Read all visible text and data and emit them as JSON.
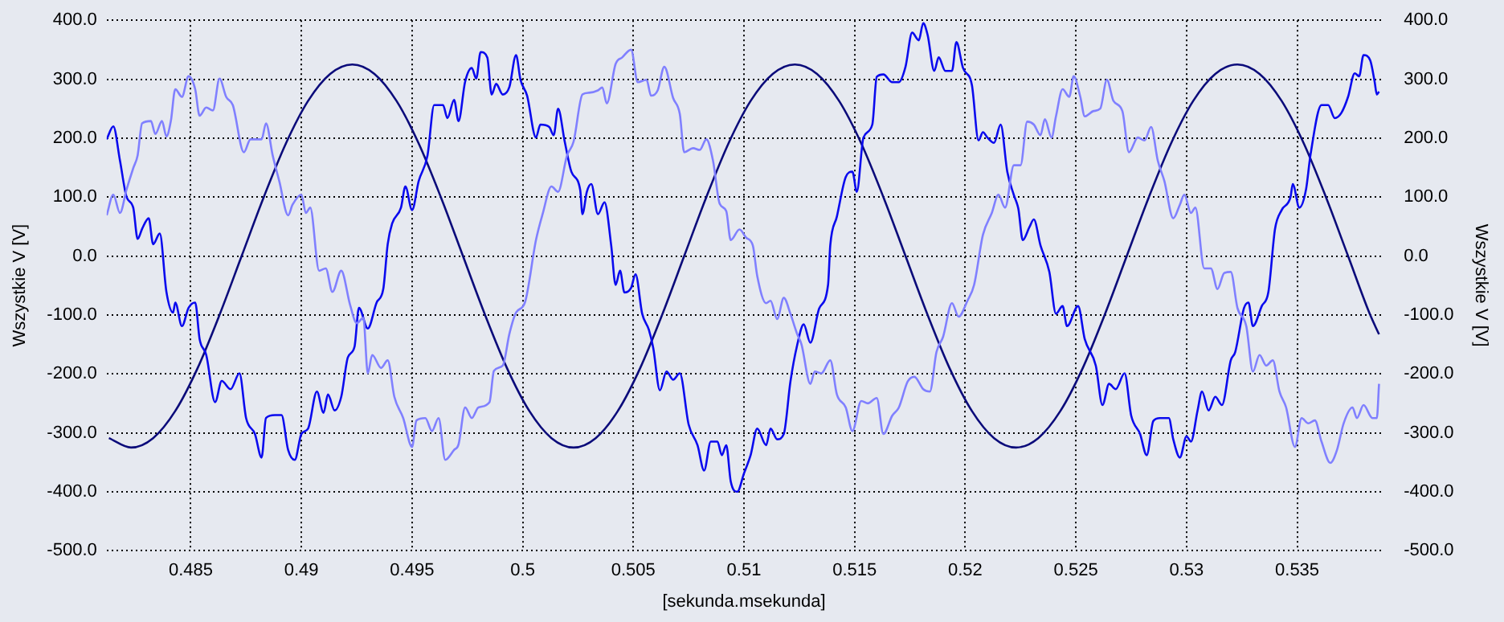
{
  "chart_data": {
    "type": "line",
    "xlabel": "[sekunda.msekunda]",
    "ylabel": "Wszystkie V [V]",
    "y2label": "Wszystkie V [V]",
    "grid": true,
    "legend": false,
    "marker": "none",
    "line_style": "solid",
    "xlim": [
      0.4812,
      0.5388
    ],
    "xticks": [
      0.485,
      0.49,
      0.495,
      0.5,
      0.505,
      0.51,
      0.515,
      0.52,
      0.525,
      0.53,
      0.535
    ],
    "ylim": [
      -500,
      400
    ],
    "yticks": [
      {
        "value": -500,
        "label": "-500.0"
      },
      {
        "value": -400,
        "label": "-400.0"
      },
      {
        "value": -300,
        "label": "-300.0"
      },
      {
        "value": -200,
        "label": "-200.0"
      },
      {
        "value": -100,
        "label": "-100.0"
      },
      {
        "value": 0,
        "label": "0.0"
      },
      {
        "value": 100,
        "label": "100.0"
      },
      {
        "value": 200,
        "label": "200.0"
      },
      {
        "value": 300,
        "label": "300.0"
      },
      {
        "value": 400,
        "label": "400.0"
      }
    ],
    "y2lim": [
      -500,
      400
    ],
    "y2ticks": [
      {
        "value": -500,
        "label": "-500.0"
      },
      {
        "value": -400,
        "label": "-400.0"
      },
      {
        "value": -300,
        "label": "-300.0"
      },
      {
        "value": -200,
        "label": "-200.0"
      },
      {
        "value": -100,
        "label": "-100.0"
      },
      {
        "value": 0,
        "label": "0.0"
      },
      {
        "value": 100,
        "label": "100.0"
      },
      {
        "value": 200,
        "label": "200.0"
      },
      {
        "value": 300,
        "label": "300.0"
      },
      {
        "value": 400,
        "label": "400.0"
      }
    ],
    "series": [
      {
        "color": "#8080ff",
        "x": [
          0.4812,
          0.4815,
          0.4818,
          0.4821,
          0.4824,
          0.4826,
          0.4828,
          0.4832,
          0.4834,
          0.4837,
          0.4839,
          0.4841,
          0.4843,
          0.4846,
          0.4849,
          0.4852,
          0.4854,
          0.4857,
          0.486,
          0.4863,
          0.4866,
          0.4869,
          0.4874,
          0.4877,
          0.4882,
          0.4884,
          0.4887,
          0.489,
          0.4894,
          0.4896,
          0.49,
          0.4902,
          0.4904,
          0.4908,
          0.4911,
          0.4914,
          0.4918,
          0.4922,
          0.4925,
          0.4928,
          0.493,
          0.4932,
          0.4936,
          0.4939,
          0.4942,
          0.4946,
          0.495,
          0.4952,
          0.4956,
          0.4959,
          0.4962,
          0.4965,
          0.4969,
          0.4971,
          0.4974,
          0.4977,
          0.498,
          0.4985,
          0.4987,
          0.4991,
          0.4994,
          0.4997,
          0.5001,
          0.5006,
          0.5009,
          0.5013,
          0.5016,
          0.502,
          0.5023,
          0.5027,
          0.503,
          0.5034,
          0.5036,
          0.5038,
          0.5042,
          0.5045,
          0.5049,
          0.5052,
          0.5056,
          0.5058,
          0.5061,
          0.5064,
          0.5068,
          0.5071,
          0.5073,
          0.5077,
          0.508,
          0.5083,
          0.5086,
          0.5089,
          0.5092,
          0.5094,
          0.5098,
          0.5101,
          0.5104,
          0.5106,
          0.511,
          0.5112,
          0.5115,
          0.5118,
          0.5121,
          0.5124,
          0.5126,
          0.513,
          0.5132,
          0.5135,
          0.5139,
          0.5142,
          0.5146,
          0.5149,
          0.5153,
          0.5156,
          0.516,
          0.5163,
          0.5167,
          0.517,
          0.5174,
          0.5177,
          0.5181,
          0.5184,
          0.5187,
          0.519,
          0.5194,
          0.5197,
          0.5201,
          0.5204,
          0.5208,
          0.5212,
          0.5215,
          0.5218,
          0.5222,
          0.5225,
          0.5228,
          0.5231,
          0.5234,
          0.5236,
          0.5239,
          0.5241,
          0.5244,
          0.5247,
          0.5249,
          0.5252,
          0.5254,
          0.5258,
          0.5261,
          0.5264,
          0.5267,
          0.5271,
          0.5274,
          0.5278,
          0.5281,
          0.5284,
          0.5287,
          0.529,
          0.5294,
          0.5297,
          0.5299,
          0.5302,
          0.5304,
          0.5308,
          0.5311,
          0.5314,
          0.5317,
          0.532,
          0.5323,
          0.5327,
          0.533,
          0.5333,
          0.5336,
          0.5339,
          0.5342,
          0.5345,
          0.5349,
          0.5352,
          0.5355,
          0.5358,
          0.5361,
          0.5365,
          0.5368,
          0.5371,
          0.5375,
          0.5377,
          0.538,
          0.5384,
          0.5386,
          0.5387
        ],
        "values": [
          69,
          104,
          73,
          113,
          149,
          171,
          225,
          229,
          207,
          229,
          203,
          229,
          283,
          270,
          305,
          283,
          238,
          252,
          247,
          301,
          270,
          256,
          176,
          198,
          198,
          225,
          171,
          127,
          69,
          87,
          104,
          73,
          82,
          -25,
          -21,
          -61,
          -25,
          -83,
          -114,
          -105,
          -199,
          -168,
          -190,
          -177,
          -239,
          -275,
          -324,
          -279,
          -275,
          -297,
          -275,
          -346,
          -329,
          -320,
          -257,
          -275,
          -257,
          -248,
          -195,
          -186,
          -132,
          -96,
          -79,
          27,
          71,
          118,
          109,
          170,
          194,
          274,
          277,
          281,
          286,
          259,
          326,
          337,
          350,
          295,
          299,
          272,
          281,
          321,
          268,
          241,
          176,
          183,
          180,
          198,
          162,
          89,
          76,
          27,
          45,
          31,
          18,
          -34,
          -80,
          -76,
          -107,
          -71,
          -98,
          -132,
          -150,
          -217,
          -196,
          -199,
          -177,
          -235,
          -257,
          -297,
          -246,
          -250,
          -241,
          -302,
          -271,
          -257,
          -213,
          -205,
          -226,
          -230,
          -163,
          -137,
          -80,
          -103,
          -76,
          -49,
          36,
          73,
          104,
          82,
          154,
          154,
          228,
          223,
          205,
          232,
          201,
          237,
          283,
          270,
          305,
          270,
          237,
          246,
          250,
          299,
          263,
          246,
          176,
          201,
          196,
          219,
          162,
          127,
          64,
          87,
          104,
          73,
          82,
          -21,
          -21,
          -56,
          -29,
          -27,
          -88,
          -119,
          -196,
          -168,
          -186,
          -177,
          -230,
          -257,
          -324,
          -275,
          -284,
          -279,
          -315,
          -351,
          -329,
          -284,
          -257,
          -275,
          -253,
          -275,
          -275,
          -217
        ]
      },
      {
        "color": "#0a0aee",
        "x": [
          0.4812,
          0.4815,
          0.4818,
          0.4821,
          0.4824,
          0.4826,
          0.4828,
          0.4831,
          0.4833,
          0.4836,
          0.4839,
          0.4842,
          0.4843,
          0.4846,
          0.4849,
          0.4852,
          0.4854,
          0.4857,
          0.4861,
          0.4864,
          0.4868,
          0.4872,
          0.4875,
          0.4879,
          0.4882,
          0.4884,
          0.4888,
          0.4891,
          0.4894,
          0.4897,
          0.49,
          0.4903,
          0.4907,
          0.491,
          0.4912,
          0.4915,
          0.4918,
          0.4921,
          0.4924,
          0.4926,
          0.493,
          0.4934,
          0.4937,
          0.4939,
          0.4941,
          0.4945,
          0.4947,
          0.495,
          0.4953,
          0.4957,
          0.496,
          0.4964,
          0.4966,
          0.4969,
          0.4971,
          0.4974,
          0.4977,
          0.4979,
          0.4981,
          0.4984,
          0.4986,
          0.4988,
          0.4991,
          0.4994,
          0.4997,
          0.4999,
          0.5002,
          0.5006,
          0.5008,
          0.5012,
          0.5014,
          0.5016,
          0.5019,
          0.5022,
          0.5026,
          0.5027,
          0.5029,
          0.5031,
          0.5034,
          0.5037,
          0.504,
          0.5042,
          0.5044,
          0.5046,
          0.5049,
          0.5051,
          0.5054,
          0.5057,
          0.5059,
          0.5062,
          0.5065,
          0.5068,
          0.5071,
          0.5075,
          0.5079,
          0.5082,
          0.5085,
          0.5088,
          0.509,
          0.5092,
          0.5094,
          0.5097,
          0.51,
          0.5103,
          0.5106,
          0.511,
          0.5112,
          0.5115,
          0.5118,
          0.5121,
          0.5124,
          0.5127,
          0.513,
          0.5134,
          0.5138,
          0.5139,
          0.5142,
          0.5146,
          0.5149,
          0.5151,
          0.5154,
          0.5158,
          0.516,
          0.5163,
          0.5167,
          0.517,
          0.5173,
          0.5176,
          0.5179,
          0.5181,
          0.5183,
          0.5186,
          0.5188,
          0.5191,
          0.5194,
          0.5196,
          0.5199,
          0.5203,
          0.5206,
          0.5208,
          0.521,
          0.5213,
          0.5216,
          0.5219,
          0.5222,
          0.5224,
          0.5226,
          0.5229,
          0.5231,
          0.5234,
          0.5238,
          0.5241,
          0.5244,
          0.5246,
          0.5251,
          0.5254,
          0.5259,
          0.5262,
          0.5265,
          0.5268,
          0.5272,
          0.5275,
          0.5279,
          0.5282,
          0.5285,
          0.5288,
          0.5292,
          0.5294,
          0.5297,
          0.53,
          0.5302,
          0.5305,
          0.5307,
          0.531,
          0.5313,
          0.5316,
          0.532,
          0.5322,
          0.5326,
          0.5328,
          0.533,
          0.5334,
          0.5337,
          0.534,
          0.5343,
          0.5347,
          0.5348,
          0.5351,
          0.5354,
          0.5356,
          0.5361,
          0.5364,
          0.5367,
          0.537,
          0.5373,
          0.5376,
          0.5378,
          0.538,
          0.5383,
          0.5385,
          0.5386,
          0.5387
        ],
        "values": [
          198,
          220,
          162,
          100,
          82,
          29,
          46,
          64,
          20,
          38,
          -61,
          -96,
          -79,
          -119,
          -88,
          -79,
          -141,
          -168,
          -248,
          -212,
          -226,
          -199,
          -275,
          -302,
          -342,
          -275,
          -270,
          -270,
          -329,
          -346,
          -302,
          -293,
          -230,
          -266,
          -235,
          -262,
          -239,
          -172,
          -154,
          -88,
          -123,
          -79,
          -56,
          20,
          55,
          82,
          118,
          78,
          127,
          171,
          256,
          256,
          234,
          265,
          229,
          296,
          319,
          301,
          346,
          337,
          274,
          292,
          274,
          287,
          341,
          299,
          272,
          201,
          223,
          219,
          205,
          250,
          194,
          143,
          112,
          71,
          109,
          122,
          71,
          91,
          18,
          -49,
          -25,
          -62,
          -54,
          -31,
          -98,
          -125,
          -156,
          -228,
          -196,
          -210,
          -199,
          -286,
          -321,
          -364,
          -315,
          -315,
          -338,
          -321,
          -382,
          -400,
          -369,
          -338,
          -293,
          -321,
          -293,
          -311,
          -302,
          -213,
          -152,
          -116,
          -147,
          -89,
          -49,
          18,
          67,
          134,
          143,
          109,
          201,
          223,
          304,
          308,
          295,
          295,
          321,
          379,
          366,
          395,
          375,
          314,
          337,
          314,
          314,
          363,
          319,
          290,
          196,
          210,
          201,
          192,
          223,
          143,
          103,
          80,
          27,
          49,
          62,
          18,
          -27,
          -98,
          -85,
          -119,
          -85,
          -141,
          -186,
          -253,
          -217,
          -226,
          -199,
          -271,
          -302,
          -338,
          -280,
          -275,
          -275,
          -311,
          -342,
          -306,
          -315,
          -262,
          -230,
          -262,
          -239,
          -253,
          -177,
          -163,
          -88,
          -79,
          -119,
          -85,
          -61,
          46,
          78,
          100,
          122,
          82,
          113,
          171,
          256,
          256,
          234,
          243,
          270,
          310,
          305,
          341,
          332,
          296,
          274,
          279
        ]
      },
      {
        "color": "#0b0b7a",
        "x": [
          0.4813,
          0.4823,
          0.4833,
          0.4843,
          0.4853,
          0.4863,
          0.4873,
          0.4883,
          0.4893,
          0.4903,
          0.4913,
          0.4923,
          0.4933,
          0.4943,
          0.4953,
          0.4963,
          0.4973,
          0.4983,
          0.4993,
          0.5003,
          0.5013,
          0.5023,
          0.5033,
          0.5043,
          0.5053,
          0.5063,
          0.5073,
          0.5083,
          0.5093,
          0.5103,
          0.5113,
          0.5123,
          0.5133,
          0.5143,
          0.5153,
          0.5163,
          0.5173,
          0.5183,
          0.5193,
          0.5203,
          0.5213,
          0.5223,
          0.5233,
          0.5243,
          0.5253,
          0.5263,
          0.5273,
          0.5283,
          0.5293,
          0.5303,
          0.5313,
          0.5323,
          0.5333,
          0.5343,
          0.5353,
          0.5363,
          0.5373,
          0.5383,
          0.5387
        ],
        "values": [
          -309,
          -325,
          -309,
          -263,
          -191,
          -100,
          0,
          100,
          191,
          263,
          309,
          325,
          309,
          263,
          191,
          100,
          0,
          -100,
          -191,
          -263,
          -309,
          -325,
          -309,
          -263,
          -191,
          -100,
          0,
          100,
          191,
          263,
          309,
          325,
          309,
          263,
          191,
          100,
          0,
          -100,
          -191,
          -263,
          -309,
          -325,
          -309,
          -263,
          -191,
          -100,
          0,
          100,
          191,
          263,
          309,
          325,
          309,
          263,
          191,
          100,
          0,
          -100,
          -133
        ]
      }
    ]
  }
}
